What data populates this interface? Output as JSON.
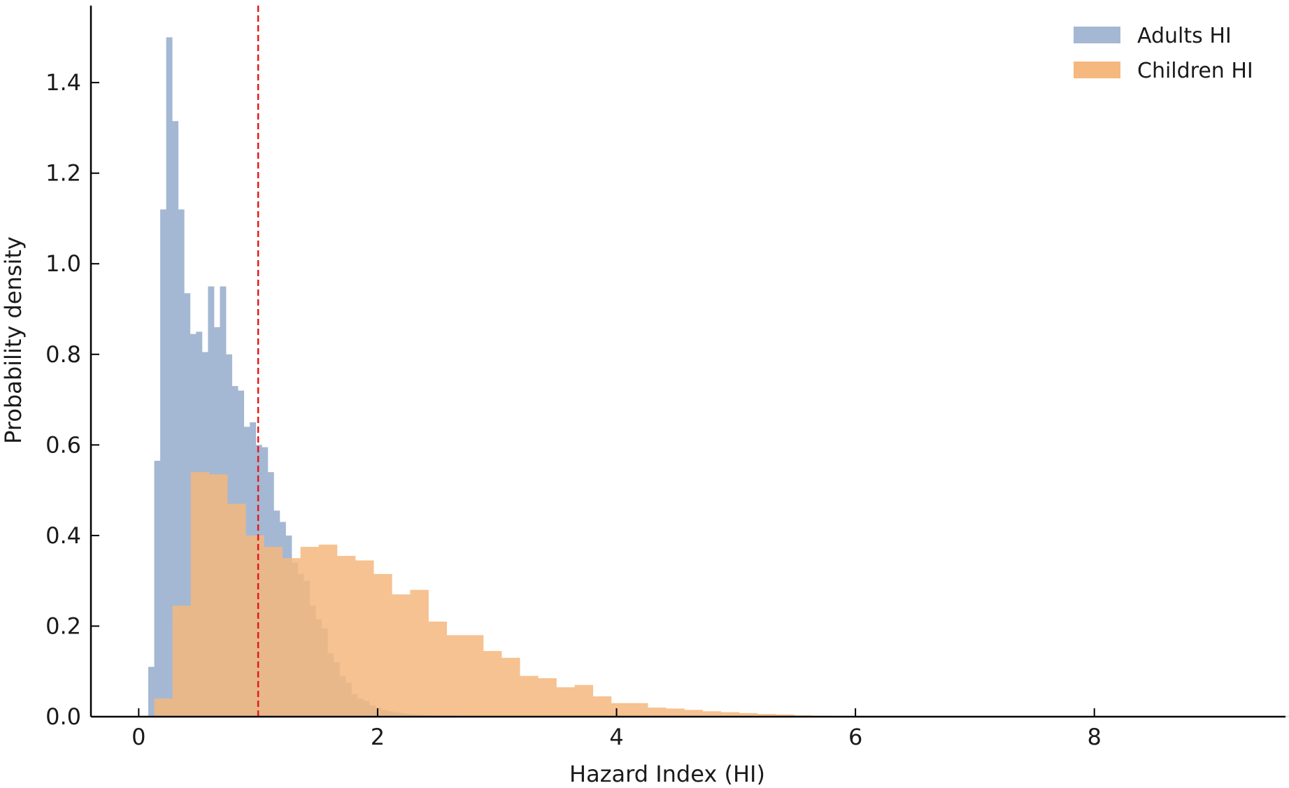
{
  "chart_data": {
    "type": "histogram",
    "xlabel": "Hazard Index (HI)",
    "ylabel": "Probability density",
    "xlim": [
      -0.4,
      9.6
    ],
    "ylim": [
      0,
      1.57
    ],
    "x_ticks": [
      0,
      2,
      4,
      6,
      8
    ],
    "y_ticks": [
      0.0,
      0.2,
      0.4,
      0.6,
      0.8,
      1.0,
      1.2,
      1.4
    ],
    "x_tick_labels": [
      "0",
      "2",
      "4",
      "6",
      "8"
    ],
    "y_tick_labels": [
      "0.0",
      "0.2",
      "0.4",
      "0.6",
      "0.8",
      "1.0",
      "1.2",
      "1.4"
    ],
    "reference_line": {
      "x": 1.0,
      "color": "#e31a1c",
      "style": "dashed"
    },
    "grid": false,
    "legend_position": "top-right",
    "series": [
      {
        "name": "Adults HI",
        "color": "#a4b8d4",
        "bin_start": 0.08,
        "bin_width": 0.05,
        "values": [
          0.11,
          0.565,
          1.12,
          1.5,
          1.315,
          1.12,
          0.935,
          0.845,
          0.85,
          0.805,
          0.95,
          0.86,
          0.95,
          0.8,
          0.73,
          0.72,
          0.64,
          0.65,
          0.6,
          0.595,
          0.54,
          0.455,
          0.43,
          0.4,
          0.34,
          0.315,
          0.3,
          0.245,
          0.215,
          0.195,
          0.14,
          0.12,
          0.09,
          0.075,
          0.05,
          0.04,
          0.035,
          0.025,
          0.02,
          0.015,
          0.012,
          0.01,
          0.008,
          0.006,
          0.005,
          0.004,
          0.003,
          0.003,
          0.002,
          0.002,
          0.002,
          0.001,
          0.001,
          0.001,
          0.001,
          0.001,
          0.001,
          0.001,
          0.001,
          0.001,
          0.001,
          0.001,
          0.001,
          0.001,
          0.001,
          0.001,
          0.001,
          0.001,
          0.001,
          0.001,
          0.001,
          0.001,
          0.001,
          0.001,
          0.001,
          0.001,
          0.001,
          0.001,
          0.001,
          0.001,
          0.001,
          0.001,
          0.001,
          0.001,
          0.001,
          0.001,
          0.001,
          0.001,
          0.001,
          0.001,
          0.001,
          0.001,
          0.001,
          0.001,
          0.001,
          0.001,
          0.001,
          0.001,
          0.001,
          0.001,
          0.001,
          0.001,
          0.001,
          0.001,
          0.001,
          0.001,
          0.001,
          0.001,
          0.001,
          0.001,
          0.001,
          0.001,
          0.001,
          0.001,
          0.001,
          0.001,
          0.001,
          0.001,
          0.001,
          0.001,
          0.001,
          0.001,
          0.001,
          0.001,
          0.001,
          0.001,
          0.001,
          0.001,
          0.001,
          0.001,
          0.001,
          0.001,
          0.001,
          0.001,
          0.001,
          0.001,
          0.001,
          0.001,
          0.001,
          0.001,
          0.001,
          0.001,
          0.001,
          0.001,
          0.001,
          0.001,
          0.001,
          0.001,
          0.001,
          0.001,
          0.001,
          0.001,
          0.001,
          0.001,
          0.001,
          0.001,
          0.001,
          0.001,
          0.001,
          0.001,
          0.001,
          0.001,
          0.001,
          0.001,
          0.001,
          0.001,
          0.001,
          0.001,
          0.001,
          0.001,
          0.001,
          0.001,
          0.001,
          0.001,
          0.001,
          0.001,
          0.001,
          0.001,
          0.001,
          0.001,
          0.001,
          0.001,
          0.001,
          0.001,
          0.001,
          0.001,
          0.001,
          0.001,
          0.001,
          0.001,
          0.001,
          0.001,
          0.001,
          0.001
        ]
      },
      {
        "name": "Children HI",
        "color": "#f5b87e",
        "bin_start": 0.13,
        "bin_width": 0.153,
        "values": [
          0.04,
          0.245,
          0.54,
          0.535,
          0.47,
          0.4,
          0.375,
          0.35,
          0.375,
          0.38,
          0.355,
          0.345,
          0.315,
          0.27,
          0.28,
          0.21,
          0.18,
          0.18,
          0.145,
          0.13,
          0.09,
          0.085,
          0.065,
          0.07,
          0.045,
          0.03,
          0.03,
          0.02,
          0.018,
          0.015,
          0.012,
          0.01,
          0.008,
          0.006,
          0.005,
          0.003,
          0.002,
          0.001,
          0.001,
          0.001,
          0.001,
          0.001,
          0.001,
          0.001,
          0.001,
          0.001,
          0.001,
          0.001,
          0.001,
          0.001,
          0.001,
          0.001,
          0.001,
          0.001,
          0.001,
          0.001,
          0.001,
          0.001,
          0.001,
          0.001,
          0.001
        ]
      }
    ]
  }
}
